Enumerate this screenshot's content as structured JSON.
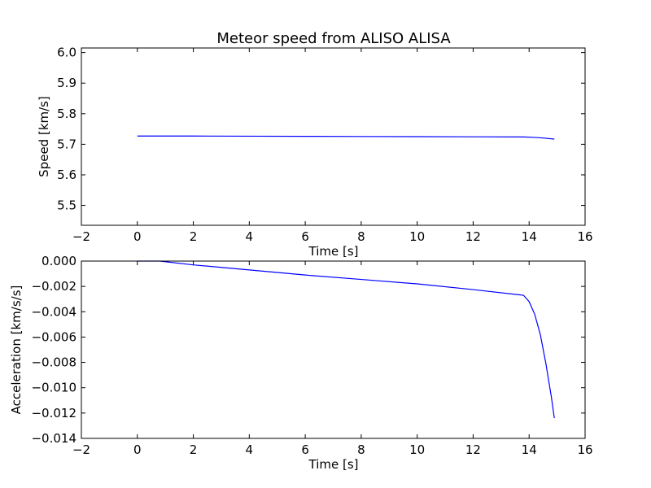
{
  "chart_data": [
    {
      "type": "line",
      "title": "Meteor speed from  ALISO ALISA",
      "xlabel": "Time [s]",
      "ylabel": "Speed [km/s]",
      "xlim": [
        -2,
        16
      ],
      "ylim": [
        5.435,
        6.015
      ],
      "xticks": [
        -2,
        0,
        2,
        4,
        6,
        8,
        10,
        12,
        14,
        16
      ],
      "yticks": [
        5.5,
        5.6,
        5.7,
        5.8,
        5.9,
        6.0
      ],
      "xtick_labels": [
        "−2",
        "0",
        "2",
        "4",
        "6",
        "8",
        "10",
        "12",
        "14",
        "16"
      ],
      "ytick_labels": [
        "5.5",
        "5.6",
        "5.7",
        "5.8",
        "5.9",
        "6.0"
      ],
      "grid": false,
      "color": "#0000ff",
      "series": [
        {
          "x": [
            0,
            2,
            4,
            6,
            8,
            10,
            12,
            13.8,
            14.2,
            14.5,
            14.9
          ],
          "y": [
            5.727,
            5.727,
            5.7265,
            5.726,
            5.7255,
            5.725,
            5.7245,
            5.724,
            5.7225,
            5.7205,
            5.717
          ]
        }
      ]
    },
    {
      "type": "line",
      "title": "",
      "xlabel": "Time [s]",
      "ylabel": "Acceleration [km/s/s]",
      "xlim": [
        -2,
        16
      ],
      "ylim": [
        -0.014,
        0.0
      ],
      "xticks": [
        -2,
        0,
        2,
        4,
        6,
        8,
        10,
        12,
        14,
        16
      ],
      "yticks": [
        0.0,
        -0.002,
        -0.004,
        -0.006,
        -0.008,
        -0.01,
        -0.012,
        -0.014
      ],
      "xtick_labels": [
        "−2",
        "0",
        "2",
        "4",
        "6",
        "8",
        "10",
        "12",
        "14",
        "16"
      ],
      "ytick_labels": [
        "0.000",
        "−0.002",
        "−0.004",
        "−0.006",
        "−0.008",
        "−0.010",
        "−0.012",
        "−0.014"
      ],
      "grid": false,
      "color": "#0000ff",
      "series": [
        {
          "x": [
            0,
            0.8,
            2,
            4,
            6,
            8,
            10,
            12,
            13.8,
            14.0,
            14.2,
            14.4,
            14.6,
            14.8,
            14.9
          ],
          "y": [
            0.0,
            0.0,
            -0.0003,
            -0.0007,
            -0.0011,
            -0.00145,
            -0.0018,
            -0.00225,
            -0.0027,
            -0.0032,
            -0.0042,
            -0.0058,
            -0.0081,
            -0.0108,
            -0.0124
          ]
        }
      ]
    }
  ]
}
